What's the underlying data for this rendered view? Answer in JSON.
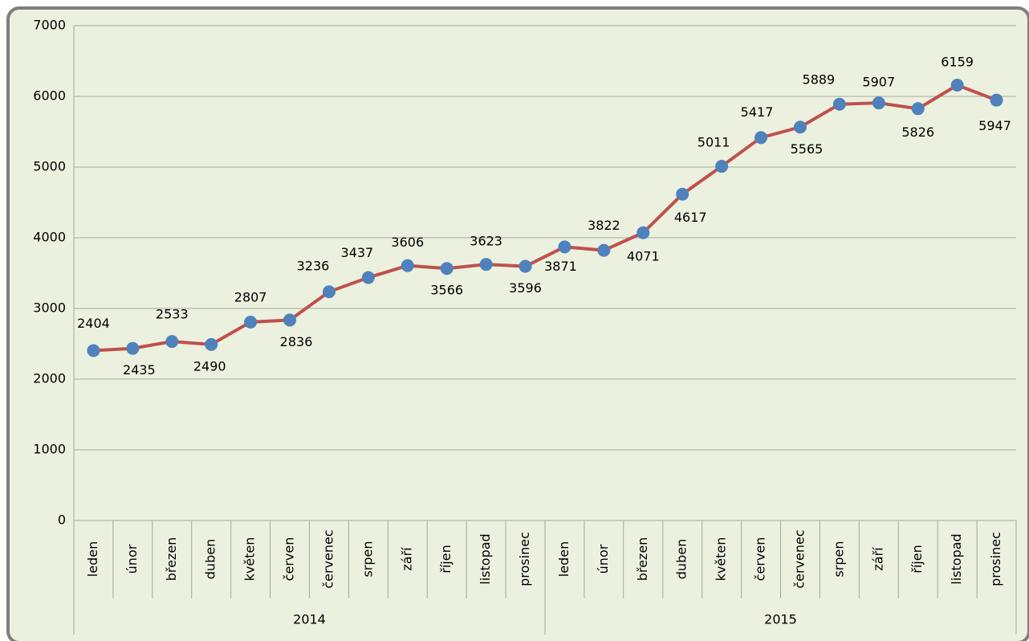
{
  "chart_data": {
    "type": "line",
    "categories": [
      "leden",
      "únor",
      "březen",
      "duben",
      "květen",
      "červen",
      "červenec",
      "srpen",
      "září",
      "říjen",
      "listopad",
      "prosinec",
      "leden",
      "únor",
      "březen",
      "duben",
      "květen",
      "červen",
      "červenec",
      "srpen",
      "září",
      "říjen",
      "listopad",
      "prosinec"
    ],
    "groups": [
      {
        "name": "2014",
        "count": 12
      },
      {
        "name": "2015",
        "count": 12
      }
    ],
    "series": [
      {
        "name": null,
        "color": "#c0504d",
        "marker_color": "#4f81bd",
        "values": [
          2404,
          2435,
          2533,
          2490,
          2807,
          2836,
          3236,
          3437,
          3606,
          3566,
          3623,
          3596,
          3871,
          3822,
          4071,
          4617,
          5011,
          5417,
          5565,
          5889,
          5907,
          5826,
          6159,
          5947
        ]
      }
    ],
    "ylim": [
      0,
      7000
    ],
    "yticks": [
      0,
      1000,
      2000,
      3000,
      4000,
      5000,
      6000,
      7000
    ],
    "grid": true
  }
}
